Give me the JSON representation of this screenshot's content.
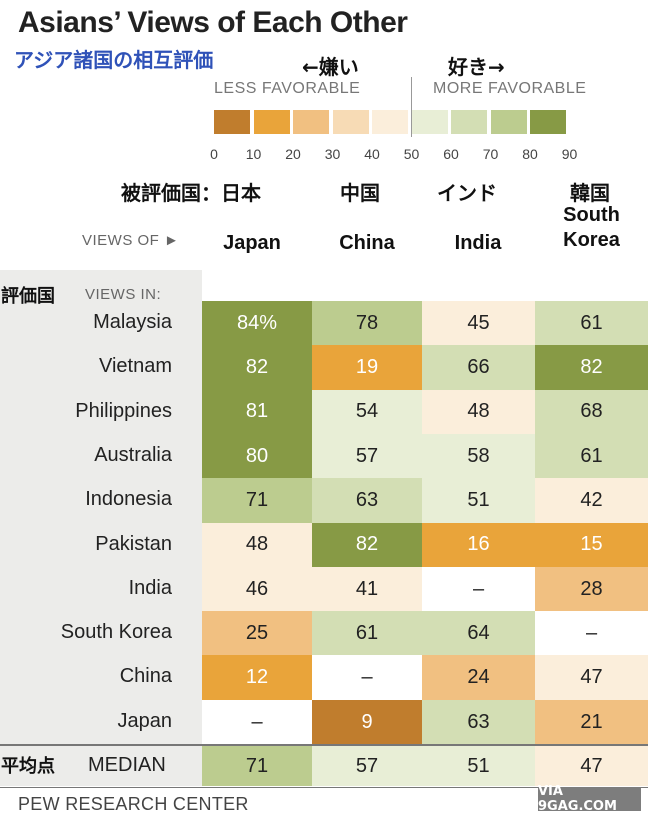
{
  "title": "Asians’ Views of Each Other",
  "jp_subtitle": "アジア諸国の相互評価",
  "jp_less": "←嫌い",
  "jp_more": "好き→",
  "legend": {
    "less_label": "LESS FAVORABLE",
    "more_label": "MORE FAVORABLE",
    "ticks": [
      "0",
      "10",
      "20",
      "30",
      "40",
      "50",
      "60",
      "70",
      "80",
      "90"
    ],
    "colors": [
      "#c07d2d",
      "#e9a43a",
      "#f1c081",
      "#f7dbb5",
      "#fbeedb",
      "#e8eed6",
      "#d3deb4",
      "#bccc8f",
      "#879a45"
    ]
  },
  "colors": {
    "bg_missing": "#ffffff",
    "text_dark": "#222222",
    "text_light": "#ffffff"
  },
  "headers": {
    "views_of": "VIEWS OF ►",
    "views_in": "VIEWS IN:",
    "jp_evaluated": "被評価国：日本",
    "jp_evaluator": "評価国",
    "jp_average": "平均点",
    "median_label": "MEDIAN"
  },
  "source": "PEW RESEARCH CENTER",
  "watermark": "VIA 9GAG.COM",
  "chart_data": {
    "type": "heatmap",
    "title": "Asians’ Views of Each Other",
    "unit": "% favorable",
    "column_labels_jp": [
      "被評価国：日本",
      "中国",
      "インド",
      "韓国"
    ],
    "columns": [
      "Japan",
      "China",
      "India",
      "South Korea"
    ],
    "rows": [
      "Malaysia",
      "Vietnam",
      "Philippines",
      "Australia",
      "Indonesia",
      "Pakistan",
      "India",
      "South Korea",
      "China",
      "Japan"
    ],
    "values": [
      [
        "84%",
        "78",
        "45",
        "61"
      ],
      [
        "82",
        "19",
        "66",
        "82"
      ],
      [
        "81",
        "54",
        "48",
        "68"
      ],
      [
        "80",
        "57",
        "58",
        "61"
      ],
      [
        "71",
        "63",
        "51",
        "42"
      ],
      [
        "48",
        "82",
        "16",
        "15"
      ],
      [
        "46",
        "41",
        "–",
        "28"
      ],
      [
        "25",
        "61",
        "64",
        "–"
      ],
      [
        "12",
        "–",
        "24",
        "47"
      ],
      [
        "–",
        "9",
        "63",
        "21"
      ]
    ],
    "median": [
      "71",
      "57",
      "51",
      "47"
    ],
    "scale": [
      0,
      90
    ],
    "bins": [
      0,
      10,
      20,
      30,
      40,
      50,
      60,
      70,
      80,
      90
    ]
  }
}
